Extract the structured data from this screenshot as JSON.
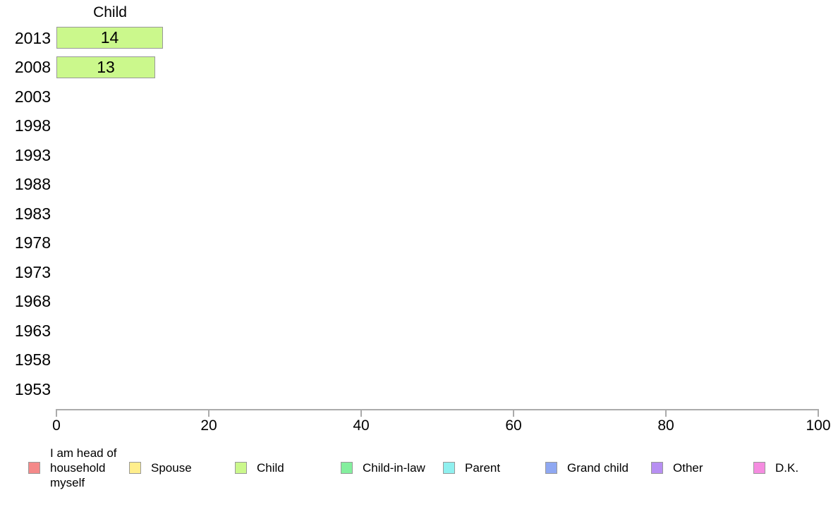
{
  "chart_data": {
    "type": "bar",
    "orientation": "horizontal",
    "title": "Child",
    "categories": [
      "2013",
      "2008",
      "2003",
      "1998",
      "1993",
      "1988",
      "1983",
      "1978",
      "1973",
      "1968",
      "1963",
      "1958",
      "1953"
    ],
    "series": [
      {
        "name": "Child",
        "color": "#cbf88c",
        "values": [
          14,
          13,
          null,
          null,
          null,
          null,
          null,
          null,
          null,
          null,
          null,
          null,
          null
        ]
      }
    ],
    "value_labels": [
      "14",
      "13"
    ],
    "xlabel": "",
    "ylabel": "",
    "xlim": [
      0,
      100
    ],
    "x_ticks": [
      0,
      20,
      40,
      60,
      80,
      100
    ],
    "grid": false,
    "legend_position": "bottom",
    "legend": [
      {
        "label": "I am head of household myself",
        "color": "#f48989"
      },
      {
        "label": "Spouse",
        "color": "#ffee8c"
      },
      {
        "label": "Child",
        "color": "#cbf88c"
      },
      {
        "label": "Child-in-law",
        "color": "#84ef9e"
      },
      {
        "label": "Parent",
        "color": "#8ff0ef"
      },
      {
        "label": "Grand child",
        "color": "#8fa8f2"
      },
      {
        "label": "Other",
        "color": "#b78ff2"
      },
      {
        "label": "D.K.",
        "color": "#f58ce0"
      }
    ]
  },
  "colors": {
    "bar_border": "#999999",
    "axis": "#ababab",
    "text": "#000000",
    "background": "#ffffff"
  }
}
